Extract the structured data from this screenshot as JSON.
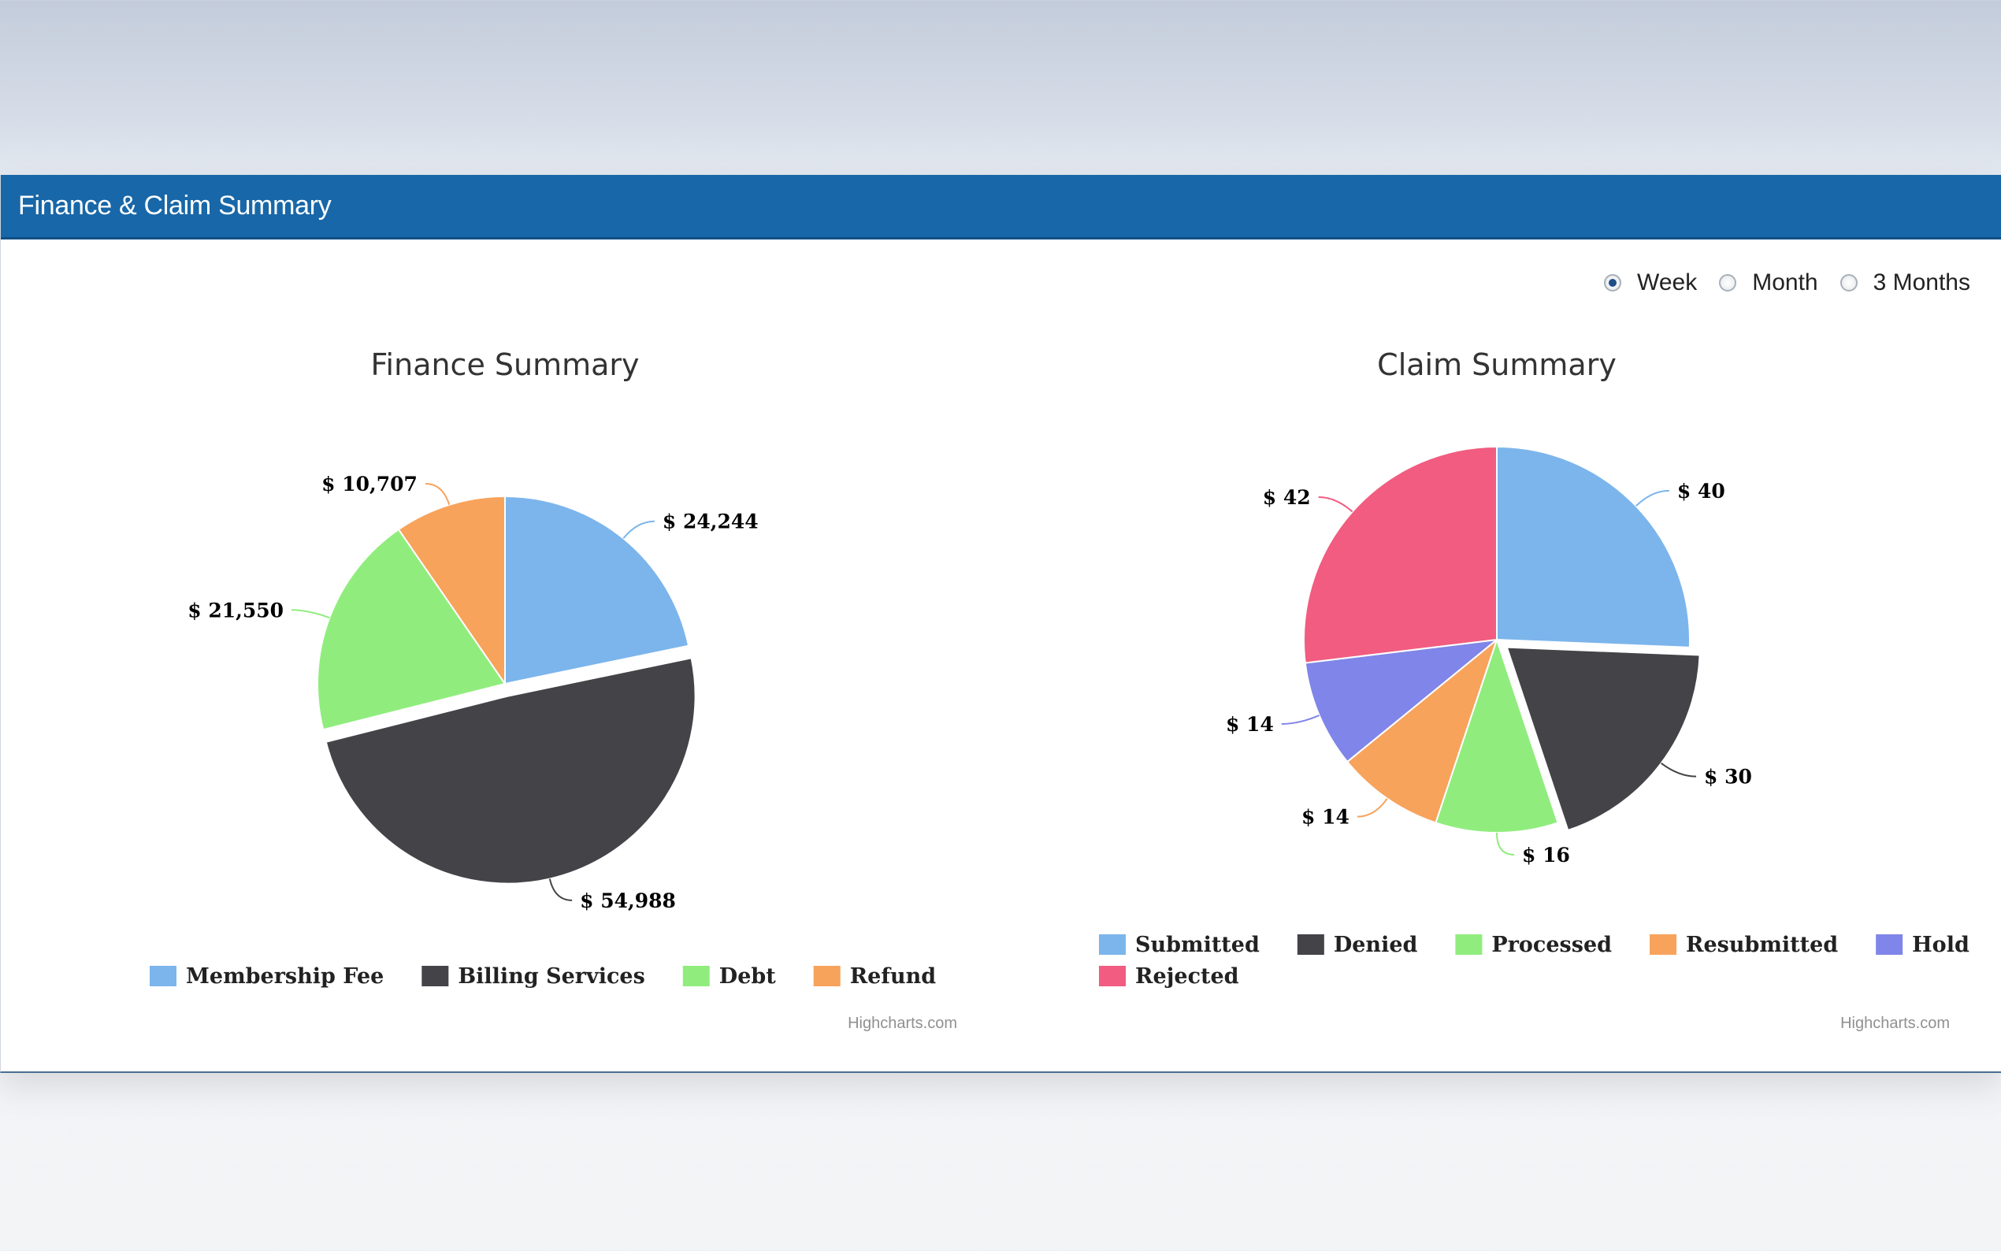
{
  "panel": {
    "title": "Finance & Claim Summary"
  },
  "period": {
    "options": [
      {
        "label": "Week",
        "checked": true
      },
      {
        "label": "Month",
        "checked": false
      },
      {
        "label": "3 Months",
        "checked": false
      }
    ]
  },
  "chart_data": [
    {
      "type": "pie",
      "title": "Finance Summary",
      "categories": [
        "Membership Fee",
        "Billing Services",
        "Debt",
        "Refund"
      ],
      "values": [
        24244,
        54988,
        21550,
        10707
      ],
      "labels": [
        "$ 24,244",
        "$ 54,988",
        "$ 21,550",
        "$ 10,707"
      ],
      "colors": [
        "#7cb5ec",
        "#434348",
        "#90ed7d",
        "#f7a35c"
      ],
      "sliced": [
        false,
        true,
        false,
        false
      ],
      "legend": "bottom",
      "credit": "Highcharts.com"
    },
    {
      "type": "pie",
      "title": "Claim Summary",
      "categories": [
        "Submitted",
        "Denied",
        "Processed",
        "Resubmitted",
        "Hold",
        "Rejected"
      ],
      "values": [
        40,
        30,
        16,
        14,
        14,
        42
      ],
      "labels": [
        "$ 40",
        "$ 30",
        "$ 16",
        "$ 14",
        "$ 14",
        "$ 42"
      ],
      "colors": [
        "#7cb5ec",
        "#434348",
        "#90ed7d",
        "#f7a35c",
        "#8085e9",
        "#f15c80"
      ],
      "sliced": [
        false,
        true,
        false,
        false,
        false,
        false
      ],
      "legend": "bottom",
      "credit": "Highcharts.com"
    }
  ]
}
